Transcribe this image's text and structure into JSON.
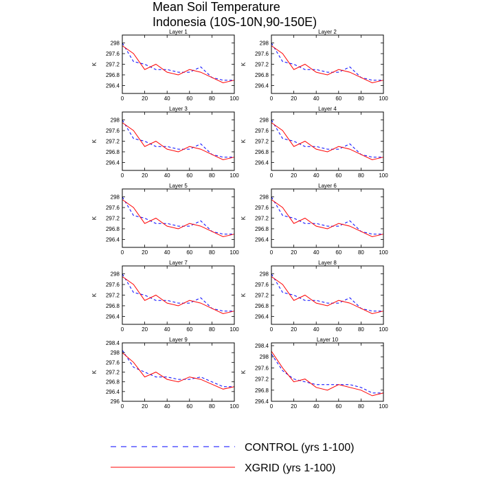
{
  "title": {
    "line1": "Mean Soil Temperature",
    "line2": "Indonesia (10S-10N,90-150E)"
  },
  "legend": {
    "control_label": "CONTROL (yrs 1-100)",
    "xgrid_label": "XGRID (yrs 1-100)"
  },
  "colors": {
    "control": "#0000ff",
    "xgrid": "#ff0000"
  },
  "chart_data": [
    {
      "type": "line",
      "title": "Layer 1",
      "ylabel": "K",
      "xlim": [
        0,
        100
      ],
      "ylim": [
        296.1,
        298.3
      ],
      "yticks": [
        296.4,
        296.8,
        297.2,
        297.6,
        298.0
      ],
      "xticks": [
        0,
        20,
        40,
        60,
        80,
        100
      ],
      "series": [
        {
          "name": "CONTROL (yrs 1-100)",
          "x": [
            0,
            10,
            20,
            30,
            40,
            50,
            60,
            70,
            80,
            90,
            100
          ],
          "values": [
            298.0,
            297.3,
            297.2,
            297.0,
            297.0,
            296.9,
            296.9,
            297.1,
            296.7,
            296.6,
            296.6
          ]
        },
        {
          "name": "XGRID (yrs 1-100)",
          "x": [
            0,
            10,
            20,
            30,
            40,
            50,
            60,
            70,
            80,
            90,
            100
          ],
          "values": [
            297.9,
            297.6,
            297.0,
            297.2,
            296.9,
            296.8,
            297.0,
            296.9,
            296.7,
            296.5,
            296.6
          ]
        }
      ]
    },
    {
      "type": "line",
      "title": "Layer 2",
      "ylabel": "K",
      "xlim": [
        0,
        100
      ],
      "ylim": [
        296.1,
        298.3
      ],
      "yticks": [
        296.4,
        296.8,
        297.2,
        297.6,
        298.0
      ],
      "xticks": [
        0,
        20,
        40,
        60,
        80,
        100
      ],
      "series": [
        {
          "name": "CONTROL (yrs 1-100)",
          "x": [
            0,
            10,
            20,
            30,
            40,
            50,
            60,
            70,
            80,
            90,
            100
          ],
          "values": [
            298.0,
            297.3,
            297.2,
            297.0,
            297.0,
            296.9,
            296.9,
            297.1,
            296.7,
            296.6,
            296.6
          ]
        },
        {
          "name": "XGRID (yrs 1-100)",
          "x": [
            0,
            10,
            20,
            30,
            40,
            50,
            60,
            70,
            80,
            90,
            100
          ],
          "values": [
            297.9,
            297.6,
            297.0,
            297.2,
            296.9,
            296.8,
            297.0,
            296.9,
            296.7,
            296.5,
            296.6
          ]
        }
      ]
    },
    {
      "type": "line",
      "title": "Layer 3",
      "ylabel": "K",
      "xlim": [
        0,
        100
      ],
      "ylim": [
        296.1,
        298.3
      ],
      "yticks": [
        296.4,
        296.8,
        297.2,
        297.6,
        298.0
      ],
      "xticks": [
        0,
        20,
        40,
        60,
        80,
        100
      ],
      "series": [
        {
          "name": "CONTROL (yrs 1-100)",
          "x": [
            0,
            10,
            20,
            30,
            40,
            50,
            60,
            70,
            80,
            90,
            100
          ],
          "values": [
            298.0,
            297.3,
            297.2,
            297.0,
            297.0,
            296.9,
            296.9,
            297.1,
            296.7,
            296.6,
            296.6
          ]
        },
        {
          "name": "XGRID (yrs 1-100)",
          "x": [
            0,
            10,
            20,
            30,
            40,
            50,
            60,
            70,
            80,
            90,
            100
          ],
          "values": [
            297.9,
            297.6,
            297.0,
            297.2,
            296.9,
            296.8,
            297.0,
            296.9,
            296.7,
            296.5,
            296.6
          ]
        }
      ]
    },
    {
      "type": "line",
      "title": "Layer 4",
      "ylabel": "K",
      "xlim": [
        0,
        100
      ],
      "ylim": [
        296.1,
        298.3
      ],
      "yticks": [
        296.4,
        296.8,
        297.2,
        297.6,
        298.0
      ],
      "xticks": [
        0,
        20,
        40,
        60,
        80,
        100
      ],
      "series": [
        {
          "name": "CONTROL (yrs 1-100)",
          "x": [
            0,
            10,
            20,
            30,
            40,
            50,
            60,
            70,
            80,
            90,
            100
          ],
          "values": [
            298.0,
            297.3,
            297.2,
            297.0,
            297.0,
            296.9,
            296.9,
            297.1,
            296.7,
            296.6,
            296.6
          ]
        },
        {
          "name": "XGRID (yrs 1-100)",
          "x": [
            0,
            10,
            20,
            30,
            40,
            50,
            60,
            70,
            80,
            90,
            100
          ],
          "values": [
            297.9,
            297.6,
            297.0,
            297.2,
            296.9,
            296.8,
            297.0,
            296.9,
            296.7,
            296.5,
            296.6
          ]
        }
      ]
    },
    {
      "type": "line",
      "title": "Layer 5",
      "ylabel": "K",
      "xlim": [
        0,
        100
      ],
      "ylim": [
        296.1,
        298.3
      ],
      "yticks": [
        296.4,
        296.8,
        297.2,
        297.6,
        298.0
      ],
      "xticks": [
        0,
        20,
        40,
        60,
        80,
        100
      ],
      "series": [
        {
          "name": "CONTROL (yrs 1-100)",
          "x": [
            0,
            10,
            20,
            30,
            40,
            50,
            60,
            70,
            80,
            90,
            100
          ],
          "values": [
            298.0,
            297.3,
            297.2,
            297.0,
            297.0,
            296.9,
            296.9,
            297.1,
            296.7,
            296.6,
            296.6
          ]
        },
        {
          "name": "XGRID (yrs 1-100)",
          "x": [
            0,
            10,
            20,
            30,
            40,
            50,
            60,
            70,
            80,
            90,
            100
          ],
          "values": [
            297.9,
            297.6,
            297.0,
            297.2,
            296.9,
            296.8,
            297.0,
            296.9,
            296.7,
            296.5,
            296.6
          ]
        }
      ]
    },
    {
      "type": "line",
      "title": "Layer 6",
      "ylabel": "K",
      "xlim": [
        0,
        100
      ],
      "ylim": [
        296.1,
        298.3
      ],
      "yticks": [
        296.4,
        296.8,
        297.2,
        297.6,
        298.0
      ],
      "xticks": [
        0,
        20,
        40,
        60,
        80,
        100
      ],
      "series": [
        {
          "name": "CONTROL (yrs 1-100)",
          "x": [
            0,
            10,
            20,
            30,
            40,
            50,
            60,
            70,
            80,
            90,
            100
          ],
          "values": [
            298.0,
            297.3,
            297.2,
            297.0,
            297.0,
            296.9,
            296.9,
            297.1,
            296.7,
            296.6,
            296.6
          ]
        },
        {
          "name": "XGRID (yrs 1-100)",
          "x": [
            0,
            10,
            20,
            30,
            40,
            50,
            60,
            70,
            80,
            90,
            100
          ],
          "values": [
            297.9,
            297.6,
            297.0,
            297.2,
            296.9,
            296.8,
            297.0,
            296.9,
            296.7,
            296.5,
            296.6
          ]
        }
      ]
    },
    {
      "type": "line",
      "title": "Layer 7",
      "ylabel": "K",
      "xlim": [
        0,
        100
      ],
      "ylim": [
        296.1,
        298.3
      ],
      "yticks": [
        296.4,
        296.8,
        297.2,
        297.6,
        298.0
      ],
      "xticks": [
        0,
        20,
        40,
        60,
        80,
        100
      ],
      "series": [
        {
          "name": "CONTROL (yrs 1-100)",
          "x": [
            0,
            10,
            20,
            30,
            40,
            50,
            60,
            70,
            80,
            90,
            100
          ],
          "values": [
            298.0,
            297.3,
            297.2,
            297.0,
            297.0,
            296.9,
            296.9,
            297.1,
            296.7,
            296.6,
            296.6
          ]
        },
        {
          "name": "XGRID (yrs 1-100)",
          "x": [
            0,
            10,
            20,
            30,
            40,
            50,
            60,
            70,
            80,
            90,
            100
          ],
          "values": [
            297.9,
            297.6,
            297.0,
            297.2,
            296.9,
            296.8,
            297.0,
            296.9,
            296.7,
            296.5,
            296.6
          ]
        }
      ]
    },
    {
      "type": "line",
      "title": "Layer 8",
      "ylabel": "K",
      "xlim": [
        0,
        100
      ],
      "ylim": [
        296.1,
        298.3
      ],
      "yticks": [
        296.4,
        296.8,
        297.2,
        297.6,
        298.0
      ],
      "xticks": [
        0,
        20,
        40,
        60,
        80,
        100
      ],
      "series": [
        {
          "name": "CONTROL (yrs 1-100)",
          "x": [
            0,
            10,
            20,
            30,
            40,
            50,
            60,
            70,
            80,
            90,
            100
          ],
          "values": [
            298.0,
            297.3,
            297.2,
            297.0,
            297.0,
            296.9,
            296.9,
            297.1,
            296.7,
            296.6,
            296.6
          ]
        },
        {
          "name": "XGRID (yrs 1-100)",
          "x": [
            0,
            10,
            20,
            30,
            40,
            50,
            60,
            70,
            80,
            90,
            100
          ],
          "values": [
            297.9,
            297.6,
            297.0,
            297.2,
            296.9,
            296.8,
            297.0,
            296.9,
            296.7,
            296.5,
            296.6
          ]
        }
      ]
    },
    {
      "type": "line",
      "title": "Layer 9",
      "ylabel": "K",
      "xlim": [
        0,
        100
      ],
      "ylim": [
        296.0,
        298.4
      ],
      "yticks": [
        296.0,
        296.4,
        296.8,
        297.2,
        297.6,
        298.0,
        298.4
      ],
      "xticks": [
        0,
        20,
        40,
        60,
        80,
        100
      ],
      "series": [
        {
          "name": "CONTROL (yrs 1-100)",
          "x": [
            0,
            10,
            20,
            30,
            40,
            50,
            60,
            70,
            80,
            90,
            100
          ],
          "values": [
            298.1,
            297.4,
            297.2,
            297.0,
            297.0,
            296.9,
            296.9,
            297.0,
            296.8,
            296.6,
            296.6
          ]
        },
        {
          "name": "XGRID (yrs 1-100)",
          "x": [
            0,
            10,
            20,
            30,
            40,
            50,
            60,
            70,
            80,
            90,
            100
          ],
          "values": [
            298.0,
            297.6,
            297.0,
            297.2,
            296.9,
            296.8,
            297.0,
            296.9,
            296.7,
            296.5,
            296.6
          ]
        }
      ]
    },
    {
      "type": "line",
      "title": "Layer 10",
      "ylabel": "K",
      "xlim": [
        0,
        100
      ],
      "ylim": [
        296.4,
        298.5
      ],
      "yticks": [
        296.4,
        296.8,
        297.2,
        297.6,
        298.0,
        298.4
      ],
      "xticks": [
        0,
        20,
        40,
        60,
        80,
        100
      ],
      "series": [
        {
          "name": "CONTROL (yrs 1-100)",
          "x": [
            0,
            10,
            20,
            30,
            40,
            50,
            60,
            70,
            80,
            90,
            100
          ],
          "values": [
            298.1,
            297.5,
            297.2,
            297.1,
            297.0,
            297.0,
            297.0,
            297.0,
            296.9,
            296.7,
            296.7
          ]
        },
        {
          "name": "XGRID (yrs 1-100)",
          "x": [
            0,
            10,
            20,
            30,
            40,
            50,
            60,
            70,
            80,
            90,
            100
          ],
          "values": [
            298.2,
            297.6,
            297.1,
            297.2,
            296.9,
            296.8,
            297.0,
            296.9,
            296.8,
            296.6,
            296.7
          ]
        }
      ]
    }
  ]
}
